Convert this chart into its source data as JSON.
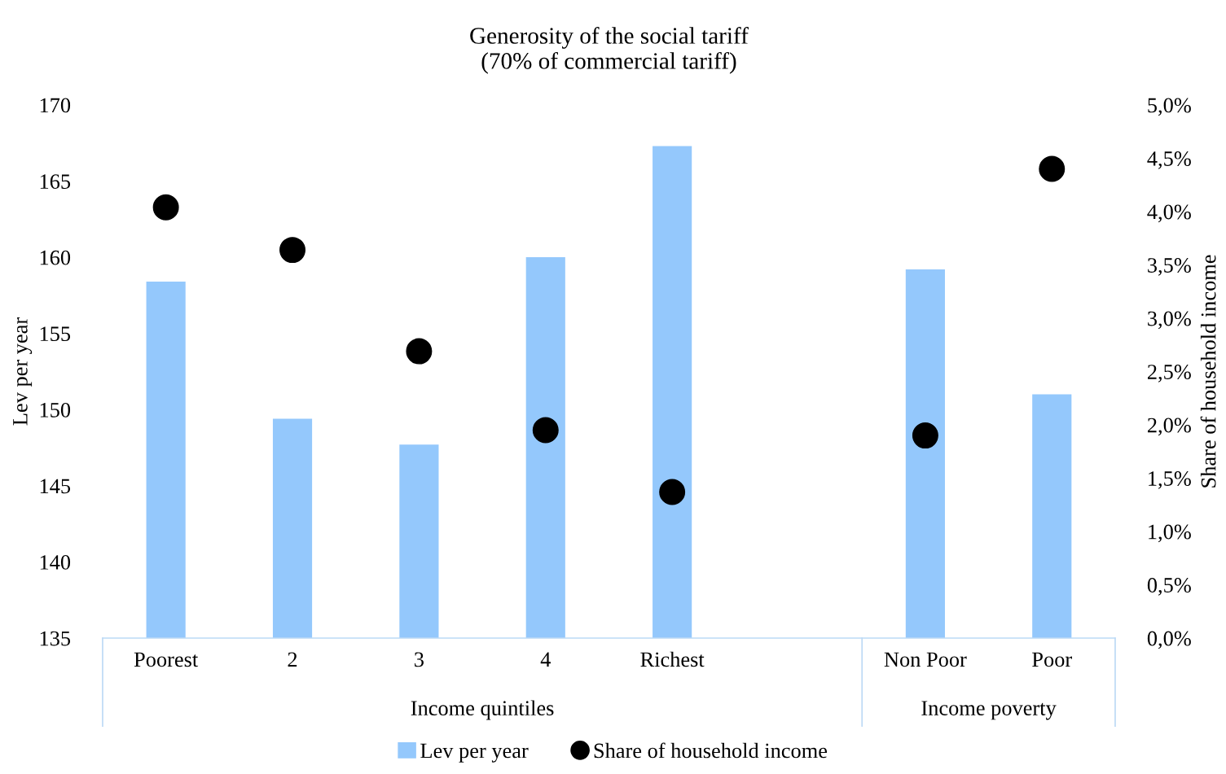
{
  "chart_data": {
    "type": "bar",
    "title": "Generosity of the social tariff\n(70% of commercial tariff)",
    "ylabel": "Lev per year",
    "y2label": "Share of household income",
    "categories": [
      "Poorest",
      "2",
      "3",
      "4",
      "Richest",
      null,
      "Non Poor",
      "Poor"
    ],
    "series": [
      {
        "name": "Lev per year",
        "color": "#94c8fc",
        "values": [
          158.4,
          149.4,
          147.7,
          160.0,
          167.3,
          null,
          159.2,
          151.0
        ]
      },
      {
        "name": "Share of household income",
        "type": "scatter",
        "axis": "y2",
        "color": "#000000",
        "marker": "circle",
        "values": [
          4.04,
          3.64,
          2.69,
          1.95,
          1.37,
          null,
          1.9,
          4.4
        ]
      }
    ],
    "ylim": [
      135,
      170
    ],
    "yticks": [
      135,
      140,
      145,
      150,
      155,
      160,
      165,
      170
    ],
    "y2lim": [
      0,
      5
    ],
    "y2ticks": [
      {
        "value": 0,
        "label": "0,0%"
      },
      {
        "value": 0.5,
        "label": "0,5%"
      },
      {
        "value": 1,
        "label": "1,0%"
      },
      {
        "value": 1.5,
        "label": "1,5%"
      },
      {
        "value": 2,
        "label": "2,0%"
      },
      {
        "value": 2.5,
        "label": "2,5%"
      },
      {
        "value": 3,
        "label": "3,0%"
      },
      {
        "value": 3.5,
        "label": "3,5%"
      },
      {
        "value": 4,
        "label": "4,0%"
      },
      {
        "value": 4.5,
        "label": "4,5%"
      },
      {
        "value": 5,
        "label": "5,0%"
      }
    ],
    "annotations": [
      "Income quintiles",
      "Income poverty"
    ],
    "grid": false,
    "legend": "bottom"
  }
}
